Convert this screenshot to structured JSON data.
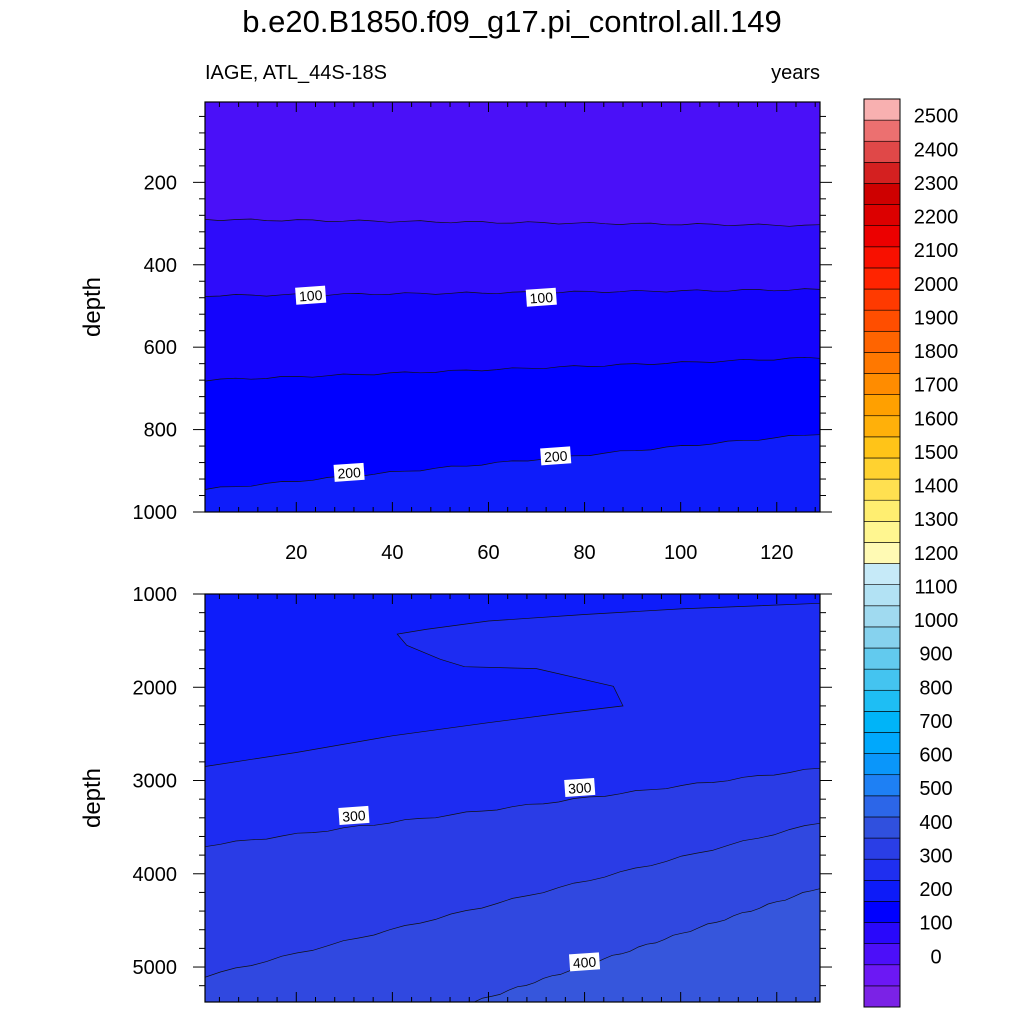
{
  "title": "b.e20.B1850.f09_g17.pi_control.all.149",
  "subtitle_left": "IAGE, ATL_44S-18S",
  "subtitle_right": "years",
  "colors": {
    "levels_0_to_500": [
      "#8020e8",
      "#6c18f4",
      "#4a10f8",
      "#2e0cfa",
      "#1404fc",
      "#0000ff",
      "#0e1cfa",
      "#1d2cf2",
      "#2a3ce6",
      "#3048e0",
      "#3656dc",
      "#3262e0",
      "#2a72ee",
      "#1a82f6"
    ],
    "colorbar": [
      "#7b22e6",
      "#6c18f4",
      "#4c0ff9",
      "#2908fb",
      "#0000ff",
      "#0d1bf8",
      "#1f2ff0",
      "#2a3ee6",
      "#3050de",
      "#2c66e8",
      "#1e80f4",
      "#0a96fa",
      "#00a8fc",
      "#00b4f8",
      "#1ebef4",
      "#44c4f0",
      "#62caee",
      "#86d2ee",
      "#a0daf0",
      "#b2e2f4",
      "#c6eaf8",
      "#fffab4",
      "#fff690",
      "#ffee70",
      "#ffe050",
      "#ffd230",
      "#ffc418",
      "#ffb00a",
      "#ffa000",
      "#ff8c00",
      "#ff7800",
      "#ff6400",
      "#ff4e00",
      "#ff3a00",
      "#ff2400",
      "#f81000",
      "#ec0000",
      "#dc0000",
      "#ce0000",
      "#d42020",
      "#e04848",
      "#ec7070",
      "#f8b0b0"
    ]
  },
  "chart_data": [
    {
      "type": "heatmap",
      "subtype": "filled-contour",
      "panel": "upper",
      "ylabel": "depth",
      "xlabel": "",
      "xlim": [
        1,
        129
      ],
      "ylim": [
        1000,
        5
      ],
      "xticks": [
        20,
        40,
        60,
        80,
        100,
        120
      ],
      "yticks": [
        200,
        400,
        600,
        800,
        1000
      ],
      "contour_boundaries": [
        {
          "level": 50,
          "x": [
            1,
            129
          ],
          "depth_start": 290,
          "depth_end": 305
        },
        {
          "level": 100,
          "x": [
            1,
            129
          ],
          "depth_start": 475,
          "depth_end": 460
        },
        {
          "level": 150,
          "x": [
            1,
            129
          ],
          "depth_start": 680,
          "depth_end": 625
        },
        {
          "level": 200,
          "x": [
            1,
            129
          ],
          "depth_start": 945,
          "depth_end": 810
        }
      ],
      "contour_labels": [
        {
          "text": "100",
          "x": 23,
          "depth": 475
        },
        {
          "text": "100",
          "x": 71,
          "depth": 480
        },
        {
          "text": "200",
          "x": 31,
          "depth": 905
        },
        {
          "text": "200",
          "x": 74,
          "depth": 865
        }
      ],
      "band_values": [
        25,
        75,
        125,
        175,
        225
      ]
    },
    {
      "type": "heatmap",
      "subtype": "filled-contour",
      "panel": "lower",
      "ylabel": "depth",
      "xlabel": "",
      "xlim": [
        1,
        129
      ],
      "ylim": [
        5375,
        1000
      ],
      "yticks": [
        1000,
        2000,
        3000,
        4000,
        5000
      ],
      "contour_boundaries": [
        {
          "level": 250,
          "x": [
            1,
            129
          ],
          "depth_start": 2850,
          "depth_end": 1100,
          "note": "tongue reaching to x~88 near 2000 m"
        },
        {
          "level": 300,
          "x": [
            1,
            129
          ],
          "depth_start": 3700,
          "depth_end": 2870
        },
        {
          "level": 350,
          "x": [
            1,
            129
          ],
          "depth_start": 5100,
          "depth_end": 3450
        },
        {
          "level": 400,
          "x": [
            57,
            129
          ],
          "depth_start": 5375,
          "depth_end": 4150
        }
      ],
      "contour_labels": [
        {
          "text": "300",
          "x": 32,
          "depth": 3380
        },
        {
          "text": "300",
          "x": 79,
          "depth": 3080
        },
        {
          "text": "400",
          "x": 80,
          "depth": 4950
        }
      ],
      "band_values": [
        225,
        275,
        325,
        375,
        425
      ]
    }
  ],
  "colorbar": {
    "labels": [
      "0",
      "100",
      "200",
      "300",
      "400",
      "500",
      "600",
      "700",
      "800",
      "900",
      "1000",
      "1100",
      "1200",
      "1300",
      "1400",
      "1500",
      "1600",
      "1700",
      "1800",
      "1900",
      "2000",
      "2100",
      "2200",
      "2300",
      "2400",
      "2500"
    ],
    "levels_min": -100,
    "levels_max": 2600,
    "interval": 50
  }
}
